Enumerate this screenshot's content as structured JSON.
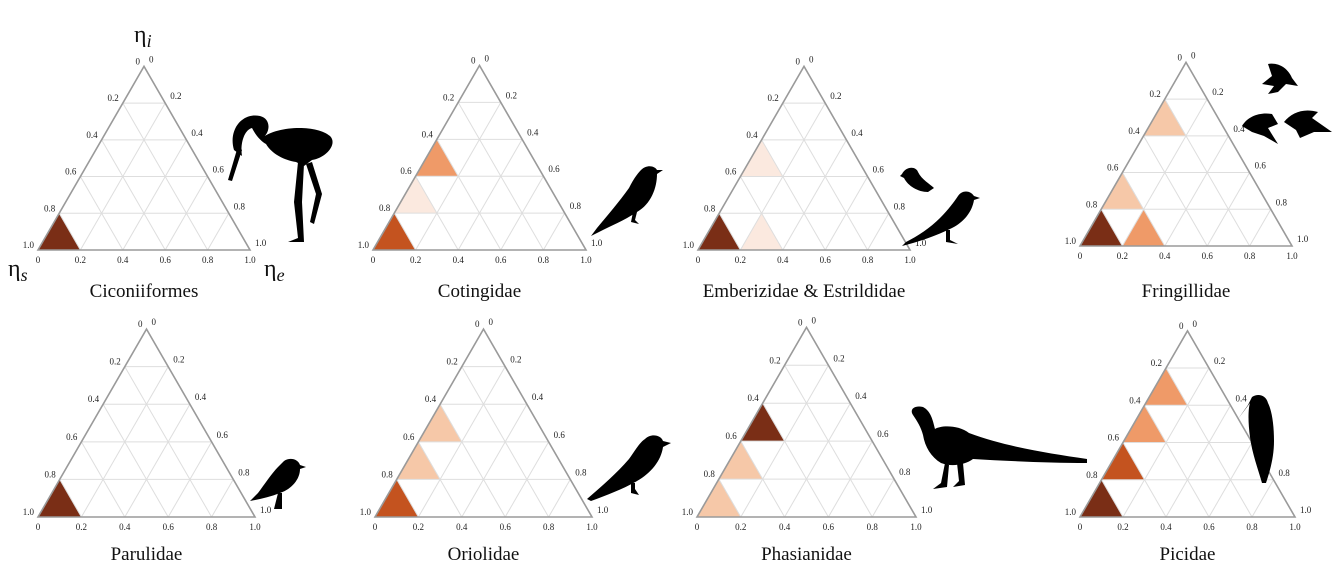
{
  "chart_data": {
    "type": "ternary-heatmap",
    "axes": {
      "top": "η",
      "top_sub": "i",
      "left": "η",
      "left_sub": "s",
      "right": "η",
      "right_sub": "e"
    },
    "ticks": [
      "0",
      "0.2",
      "0.4",
      "0.6",
      "0.8",
      "1.0"
    ],
    "color_scale": [
      "#fbe9df",
      "#f6c8a8",
      "#ef9a68",
      "#c4531f",
      "#7a2e16"
    ],
    "panels": [
      {
        "title": "Ciconiiformes",
        "cells": [
          {
            "band": 0,
            "e_index": 0,
            "level": 4
          }
        ],
        "icon": "stork-silhouette-icon"
      },
      {
        "title": "Cotingidae",
        "cells": [
          {
            "band": 0,
            "e_index": 0,
            "level": 3
          },
          {
            "band": 1,
            "e_index": 0,
            "level": 0
          },
          {
            "band": 2,
            "e_index": 0,
            "level": 2
          }
        ],
        "icon": "perched-bird-silhouette-icon"
      },
      {
        "title": "Emberizidae & Estrildidae",
        "cells": [
          {
            "band": 0,
            "e_index": 0,
            "level": 4
          },
          {
            "band": 0,
            "e_index": 1,
            "level": 0
          },
          {
            "band": 2,
            "e_index": 0,
            "level": 0
          }
        ],
        "icon": "finch-pair-silhouette-icon"
      },
      {
        "title": "Fringillidae",
        "cells": [
          {
            "band": 0,
            "e_index": 0,
            "level": 4
          },
          {
            "band": 0,
            "e_index": 1,
            "level": 2
          },
          {
            "band": 1,
            "e_index": 0,
            "level": 1
          },
          {
            "band": 3,
            "e_index": 0,
            "level": 1
          }
        ],
        "icon": "flying-finches-silhouette-icon"
      },
      {
        "title": "Parulidae",
        "cells": [
          {
            "band": 0,
            "e_index": 0,
            "level": 4
          }
        ],
        "icon": "warbler-silhouette-icon"
      },
      {
        "title": "Oriolidae",
        "cells": [
          {
            "band": 0,
            "e_index": 0,
            "level": 3
          },
          {
            "band": 1,
            "e_index": 0,
            "level": 1
          },
          {
            "band": 2,
            "e_index": 0,
            "level": 1
          }
        ],
        "icon": "oriole-silhouette-icon"
      },
      {
        "title": "Phasianidae",
        "cells": [
          {
            "band": 0,
            "e_index": 0,
            "level": 1
          },
          {
            "band": 1,
            "e_index": 0,
            "level": 1
          },
          {
            "band": 2,
            "e_index": 0,
            "level": 4
          }
        ],
        "icon": "pheasant-silhouette-icon"
      },
      {
        "title": "Picidae",
        "cells": [
          {
            "band": 0,
            "e_index": 0,
            "level": 4
          },
          {
            "band": 1,
            "e_index": 0,
            "level": 3
          },
          {
            "band": 2,
            "e_index": 0,
            "level": 2
          },
          {
            "band": 3,
            "e_index": 0,
            "level": 2
          }
        ],
        "icon": "woodpecker-silhouette-icon"
      }
    ]
  }
}
